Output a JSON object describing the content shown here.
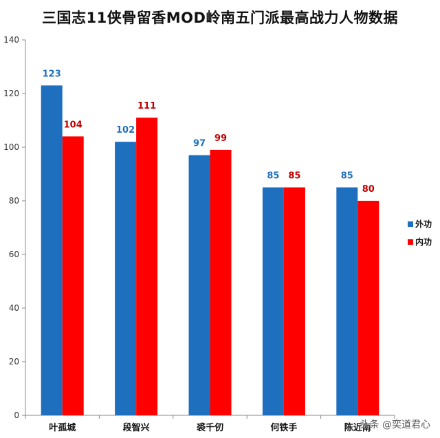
{
  "chart_data": {
    "type": "bar",
    "title": "三国志11侠骨留香MOD岭南五门派最高战力人物数据",
    "categories": [
      "叶孤城",
      "段智兴",
      "裘千仞",
      "何铁手",
      "陈近南"
    ],
    "series": [
      {
        "name": "外功",
        "values": [
          123,
          102,
          97,
          85,
          85
        ],
        "color": "#1f6fbf",
        "label_color": "#1f6fbf"
      },
      {
        "name": "内功",
        "values": [
          104,
          111,
          99,
          85,
          80
        ],
        "color": "#ff0000",
        "label_color": "#c00000"
      }
    ],
    "ylim": [
      0,
      140
    ],
    "yticks": [
      0,
      20,
      40,
      60,
      80,
      100,
      120,
      140
    ],
    "xlabel": "",
    "ylabel": "",
    "grid": false,
    "legend_position": "right"
  },
  "watermark": "头条 @奕道君心"
}
